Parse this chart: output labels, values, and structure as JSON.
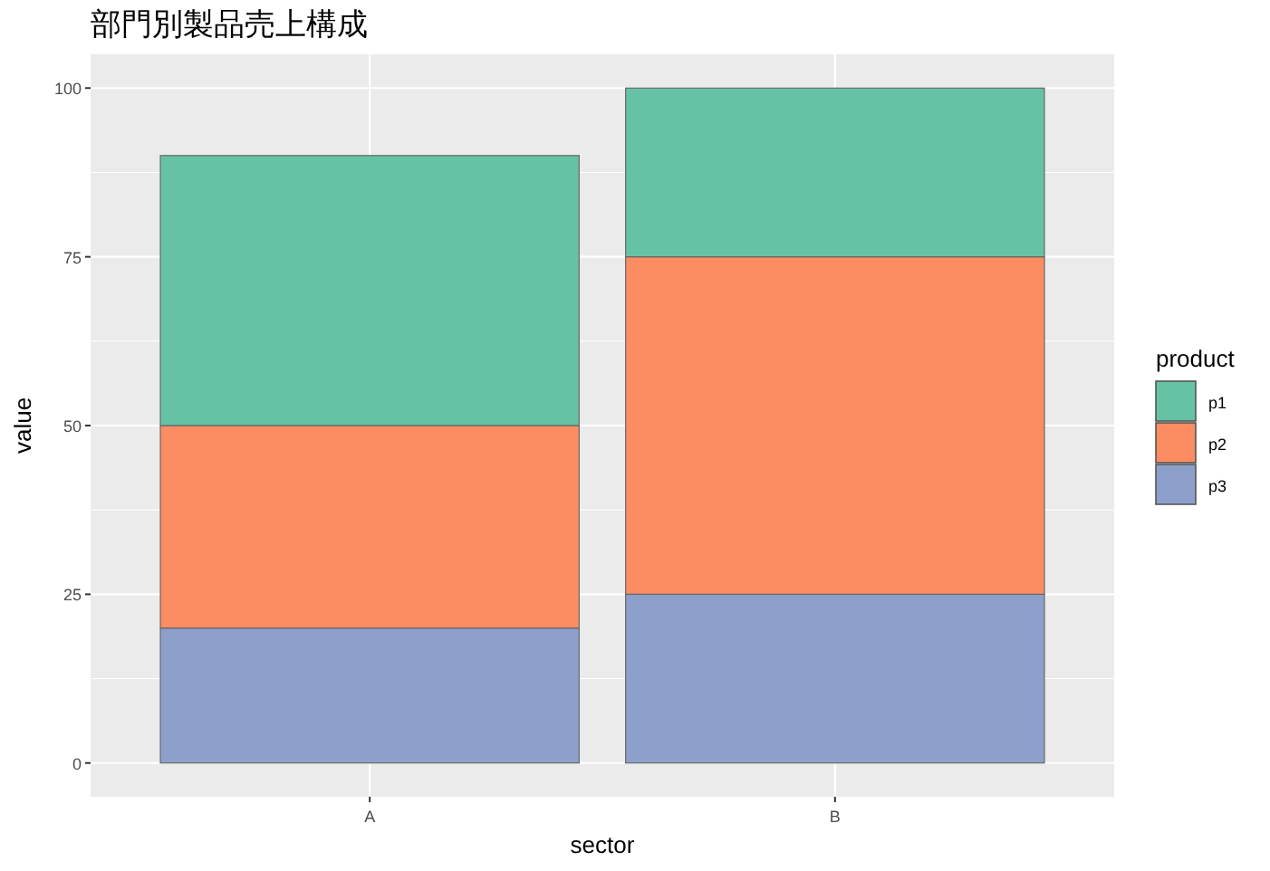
{
  "chart_data": {
    "type": "bar",
    "title": "部門別製品売上構成",
    "xlabel": "sector",
    "ylabel": "value",
    "legend_title": "product",
    "categories": [
      "A",
      "B"
    ],
    "series": [
      {
        "name": "p3",
        "color": "#8da0cb",
        "values": [
          20,
          25
        ]
      },
      {
        "name": "p2",
        "color": "#fc8d62",
        "values": [
          30,
          50
        ]
      },
      {
        "name": "p1",
        "color": "#66c2a5",
        "values": [
          40,
          25
        ]
      }
    ],
    "stacked": true,
    "ylim": [
      -5,
      105
    ],
    "yticks": [
      0,
      25,
      50,
      75,
      100
    ],
    "grid": true,
    "legend": "right"
  }
}
